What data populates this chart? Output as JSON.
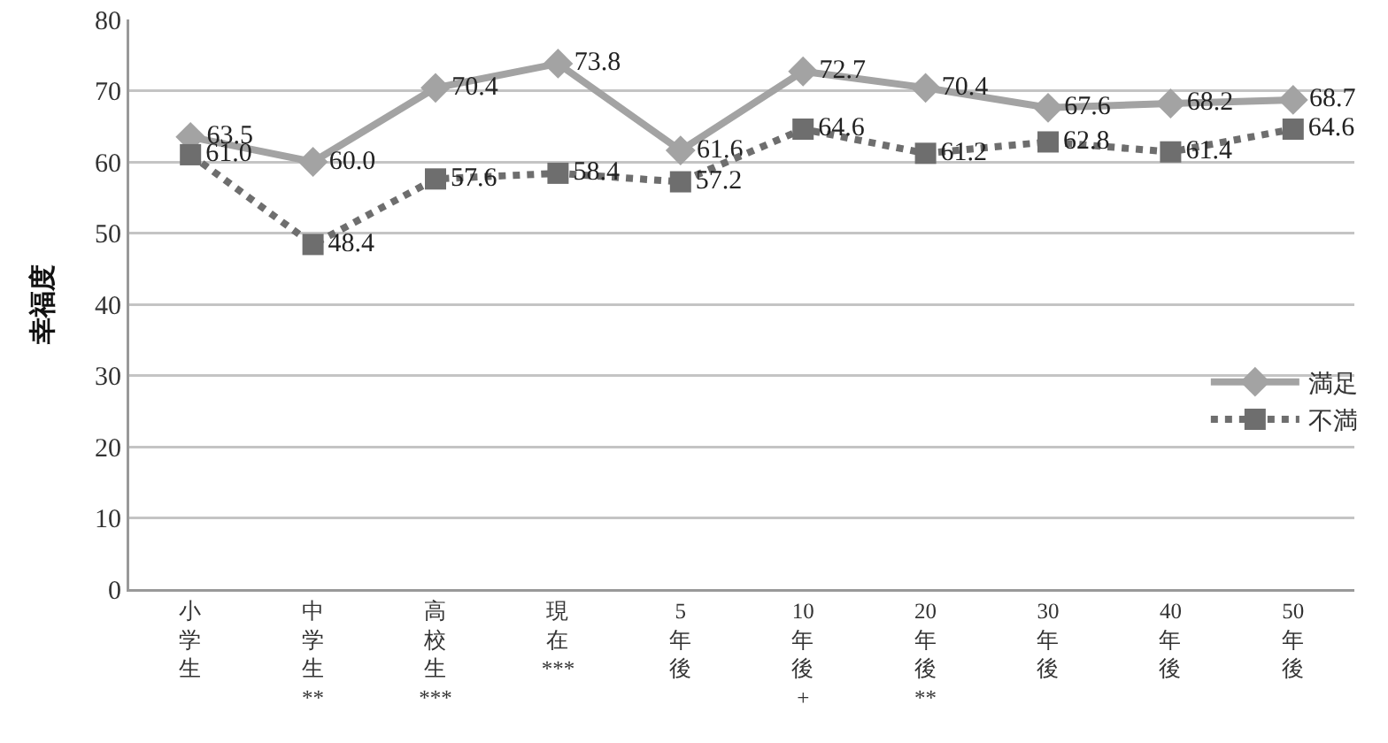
{
  "chart_data": {
    "type": "line",
    "ylabel": "幸福度",
    "categories": [
      "小学生",
      "中学生**",
      "高校生***",
      "現在***",
      "5年後",
      "10年後+",
      "20年後**",
      "30年後",
      "40年後",
      "50年後"
    ],
    "series": [
      {
        "name": "満足",
        "color": "#a3a3a3",
        "marker": "diamond",
        "line_style": "solid",
        "values": [
          63.5,
          60.0,
          70.4,
          73.8,
          61.6,
          72.7,
          70.4,
          67.6,
          68.2,
          68.7
        ],
        "value_labels": [
          "63.5",
          "60.0",
          "70.4",
          "73.8",
          "61.6",
          "72.7",
          "70.4",
          "67.6",
          "68.2",
          "68.7"
        ]
      },
      {
        "name": "不満",
        "color": "#6e6e6e",
        "marker": "square",
        "line_style": "dotted",
        "values": [
          61.0,
          48.4,
          57.6,
          58.4,
          57.2,
          64.6,
          61.2,
          62.8,
          61.4,
          64.6
        ],
        "value_labels": [
          "61.0",
          "48.4",
          "57.6",
          "58.4",
          "57.2",
          "64.6",
          "61.2",
          "62.8",
          "61.4",
          "64.6"
        ]
      }
    ],
    "ylim": [
      0,
      80
    ],
    "yticks": [
      0,
      10,
      20,
      30,
      40,
      50,
      60,
      70,
      80
    ],
    "grid": "y",
    "legend": "right"
  }
}
